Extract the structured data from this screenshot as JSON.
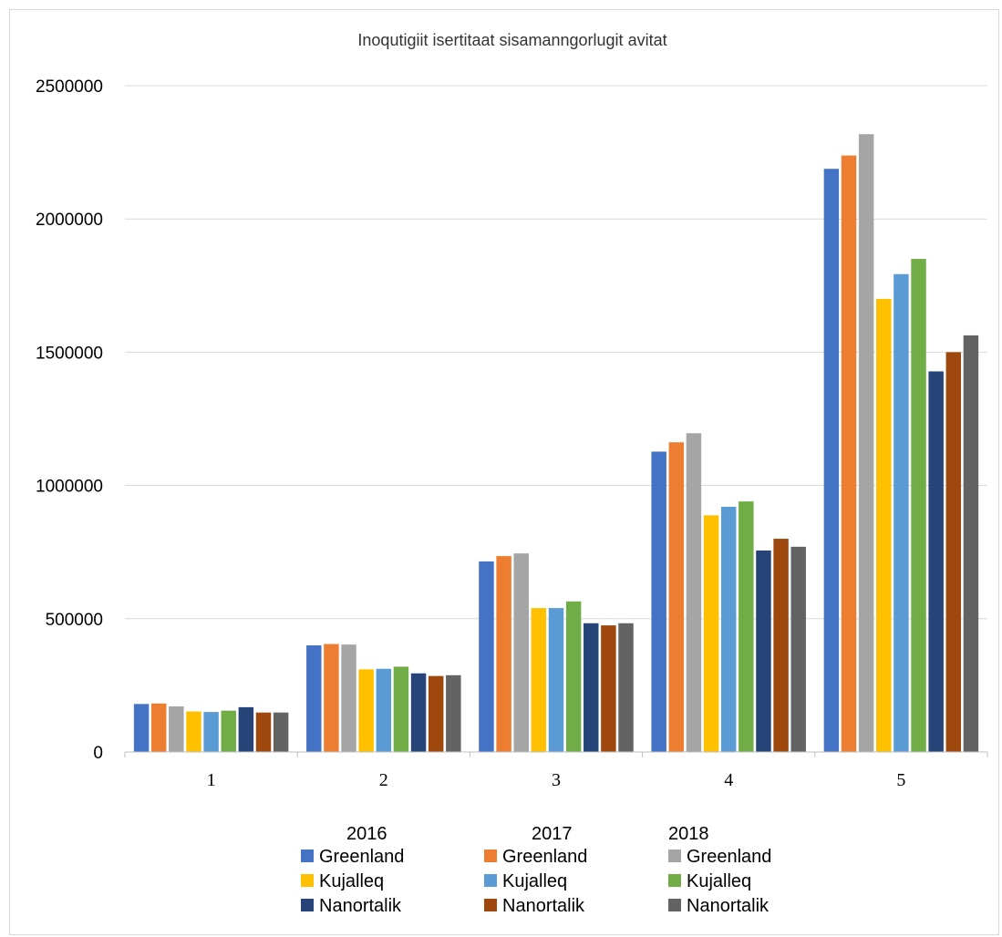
{
  "chart_data": {
    "type": "bar",
    "title": "Inoqutigiit isertitaat sisamanngorlugit avitat",
    "xlabel": "",
    "ylabel": "",
    "categories": [
      "1",
      "2",
      "3",
      "4",
      "5"
    ],
    "ylim": [
      0,
      2500000
    ],
    "yticks": [
      "0",
      "500000",
      "1000000",
      "1500000",
      "2000000",
      "2500000"
    ],
    "grid": true,
    "legend_placement": "bottom",
    "legend_groups": [
      "2016",
      "2017",
      "2018"
    ],
    "series": [
      {
        "name": "Greenland",
        "group": "2016",
        "color": "#4472C4",
        "values": [
          180000,
          400000,
          715000,
          1127000,
          2188000
        ]
      },
      {
        "name": "Greenland",
        "group": "2017",
        "color": "#ED7D31",
        "values": [
          182000,
          405000,
          735000,
          1162000,
          2238000
        ]
      },
      {
        "name": "Greenland",
        "group": "2018",
        "color": "#A5A5A5",
        "values": [
          171000,
          403000,
          745000,
          1196000,
          2318000
        ]
      },
      {
        "name": "Kujalleq",
        "group": "2016",
        "color": "#FFC000",
        "values": [
          152000,
          310000,
          540000,
          888000,
          1700000
        ]
      },
      {
        "name": "Kujalleq",
        "group": "2017",
        "color": "#5B9BD5",
        "values": [
          150000,
          312000,
          540000,
          920000,
          1793000
        ]
      },
      {
        "name": "Kujalleq",
        "group": "2018",
        "color": "#70AD47",
        "values": [
          155000,
          320000,
          565000,
          940000,
          1850000
        ]
      },
      {
        "name": "Nanortalik",
        "group": "2016",
        "color": "#264478",
        "values": [
          168000,
          295000,
          483000,
          756000,
          1428000
        ]
      },
      {
        "name": "Nanortalik",
        "group": "2017",
        "color": "#9E480E",
        "values": [
          148000,
          285000,
          475000,
          800000,
          1500000
        ]
      },
      {
        "name": "Nanortalik",
        "group": "2018",
        "color": "#636363",
        "values": [
          148000,
          288000,
          483000,
          770000,
          1563000
        ]
      }
    ]
  }
}
